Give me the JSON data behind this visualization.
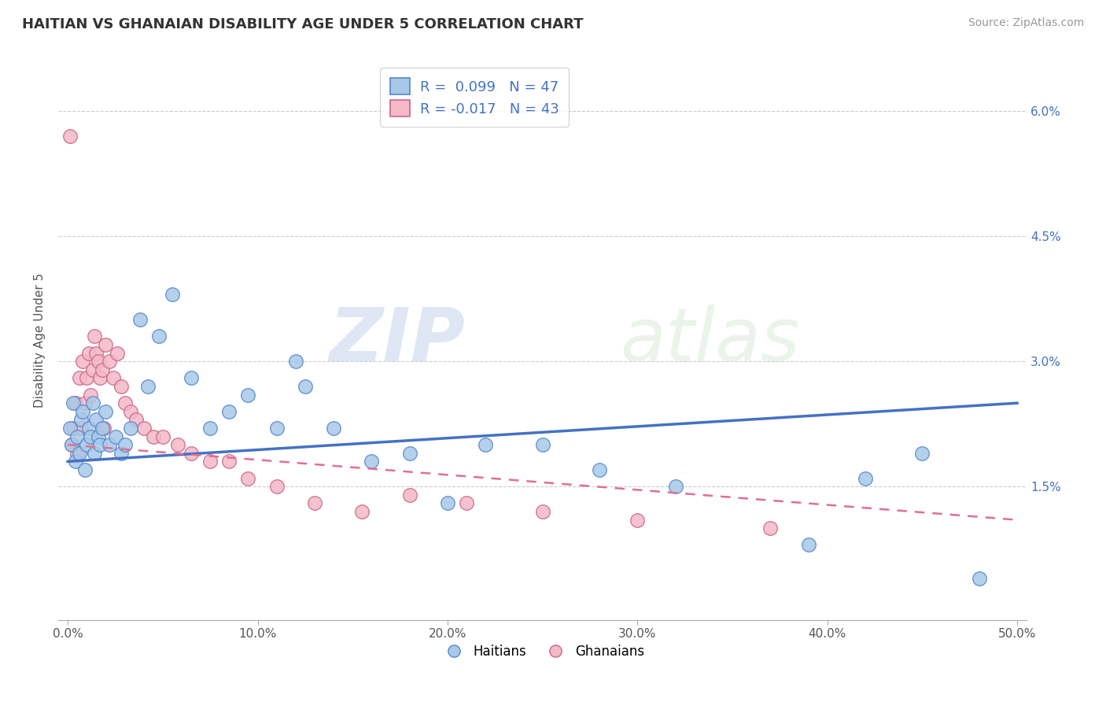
{
  "title": "HAITIAN VS GHANAIAN DISABILITY AGE UNDER 5 CORRELATION CHART",
  "source": "Source: ZipAtlas.com",
  "ylabel": "Disability Age Under 5",
  "xlim": [
    -0.005,
    0.505
  ],
  "ylim": [
    -0.001,
    0.066
  ],
  "xticks": [
    0.0,
    0.1,
    0.2,
    0.3,
    0.4,
    0.5
  ],
  "xticklabels": [
    "0.0%",
    "10.0%",
    "20.0%",
    "30.0%",
    "40.0%",
    "50.0%"
  ],
  "yticks": [
    0.0,
    0.015,
    0.03,
    0.045,
    0.06
  ],
  "yticklabels": [
    "1.5%",
    "3.0%",
    "4.5%",
    "6.0%"
  ],
  "haitian_color": "#a8c8e8",
  "ghanaian_color": "#f4b8c8",
  "haitian_edge_color": "#5588cc",
  "ghanaian_edge_color": "#cc6688",
  "haitian_line_color": "#4472c4",
  "ghanaian_line_color": "#e07090",
  "R_haitian": 0.099,
  "N_haitian": 47,
  "R_ghanaian": -0.017,
  "N_ghanaian": 43,
  "legend_label_haitian": "Haitians",
  "legend_label_ghanaian": "Ghanaians",
  "watermark_zip": "ZIP",
  "watermark_atlas": "atlas",
  "haitian_x": [
    0.001,
    0.002,
    0.003,
    0.004,
    0.005,
    0.006,
    0.007,
    0.008,
    0.009,
    0.01,
    0.011,
    0.012,
    0.013,
    0.014,
    0.015,
    0.016,
    0.017,
    0.018,
    0.02,
    0.022,
    0.025,
    0.028,
    0.03,
    0.033,
    0.038,
    0.042,
    0.048,
    0.055,
    0.065,
    0.075,
    0.085,
    0.095,
    0.11,
    0.125,
    0.14,
    0.16,
    0.18,
    0.2,
    0.22,
    0.25,
    0.12,
    0.28,
    0.32,
    0.39,
    0.42,
    0.45,
    0.48
  ],
  "haitian_y": [
    0.022,
    0.02,
    0.025,
    0.018,
    0.021,
    0.019,
    0.023,
    0.024,
    0.017,
    0.02,
    0.022,
    0.021,
    0.025,
    0.019,
    0.023,
    0.021,
    0.02,
    0.022,
    0.024,
    0.02,
    0.021,
    0.019,
    0.02,
    0.022,
    0.035,
    0.027,
    0.033,
    0.038,
    0.028,
    0.022,
    0.024,
    0.026,
    0.022,
    0.027,
    0.022,
    0.018,
    0.019,
    0.013,
    0.02,
    0.02,
    0.03,
    0.017,
    0.015,
    0.008,
    0.016,
    0.019,
    0.004
  ],
  "ghanaian_x": [
    0.001,
    0.002,
    0.003,
    0.004,
    0.005,
    0.006,
    0.007,
    0.008,
    0.009,
    0.01,
    0.011,
    0.012,
    0.013,
    0.014,
    0.015,
    0.016,
    0.017,
    0.018,
    0.019,
    0.02,
    0.022,
    0.024,
    0.026,
    0.028,
    0.03,
    0.033,
    0.036,
    0.04,
    0.045,
    0.05,
    0.058,
    0.065,
    0.075,
    0.085,
    0.095,
    0.11,
    0.13,
    0.155,
    0.18,
    0.21,
    0.25,
    0.3,
    0.37
  ],
  "ghanaian_y": [
    0.057,
    0.02,
    0.022,
    0.025,
    0.019,
    0.028,
    0.022,
    0.03,
    0.025,
    0.028,
    0.031,
    0.026,
    0.029,
    0.033,
    0.031,
    0.03,
    0.028,
    0.029,
    0.022,
    0.032,
    0.03,
    0.028,
    0.031,
    0.027,
    0.025,
    0.024,
    0.023,
    0.022,
    0.021,
    0.021,
    0.02,
    0.019,
    0.018,
    0.018,
    0.016,
    0.015,
    0.013,
    0.012,
    0.014,
    0.013,
    0.012,
    0.011,
    0.01
  ],
  "trend_haitian_x0": 0.0,
  "trend_haitian_x1": 0.5,
  "trend_haitian_y0": 0.018,
  "trend_haitian_y1": 0.025,
  "trend_ghanaian_x0": 0.0,
  "trend_ghanaian_x1": 0.5,
  "trend_ghanaian_y0": 0.02,
  "trend_ghanaian_y1": 0.011
}
